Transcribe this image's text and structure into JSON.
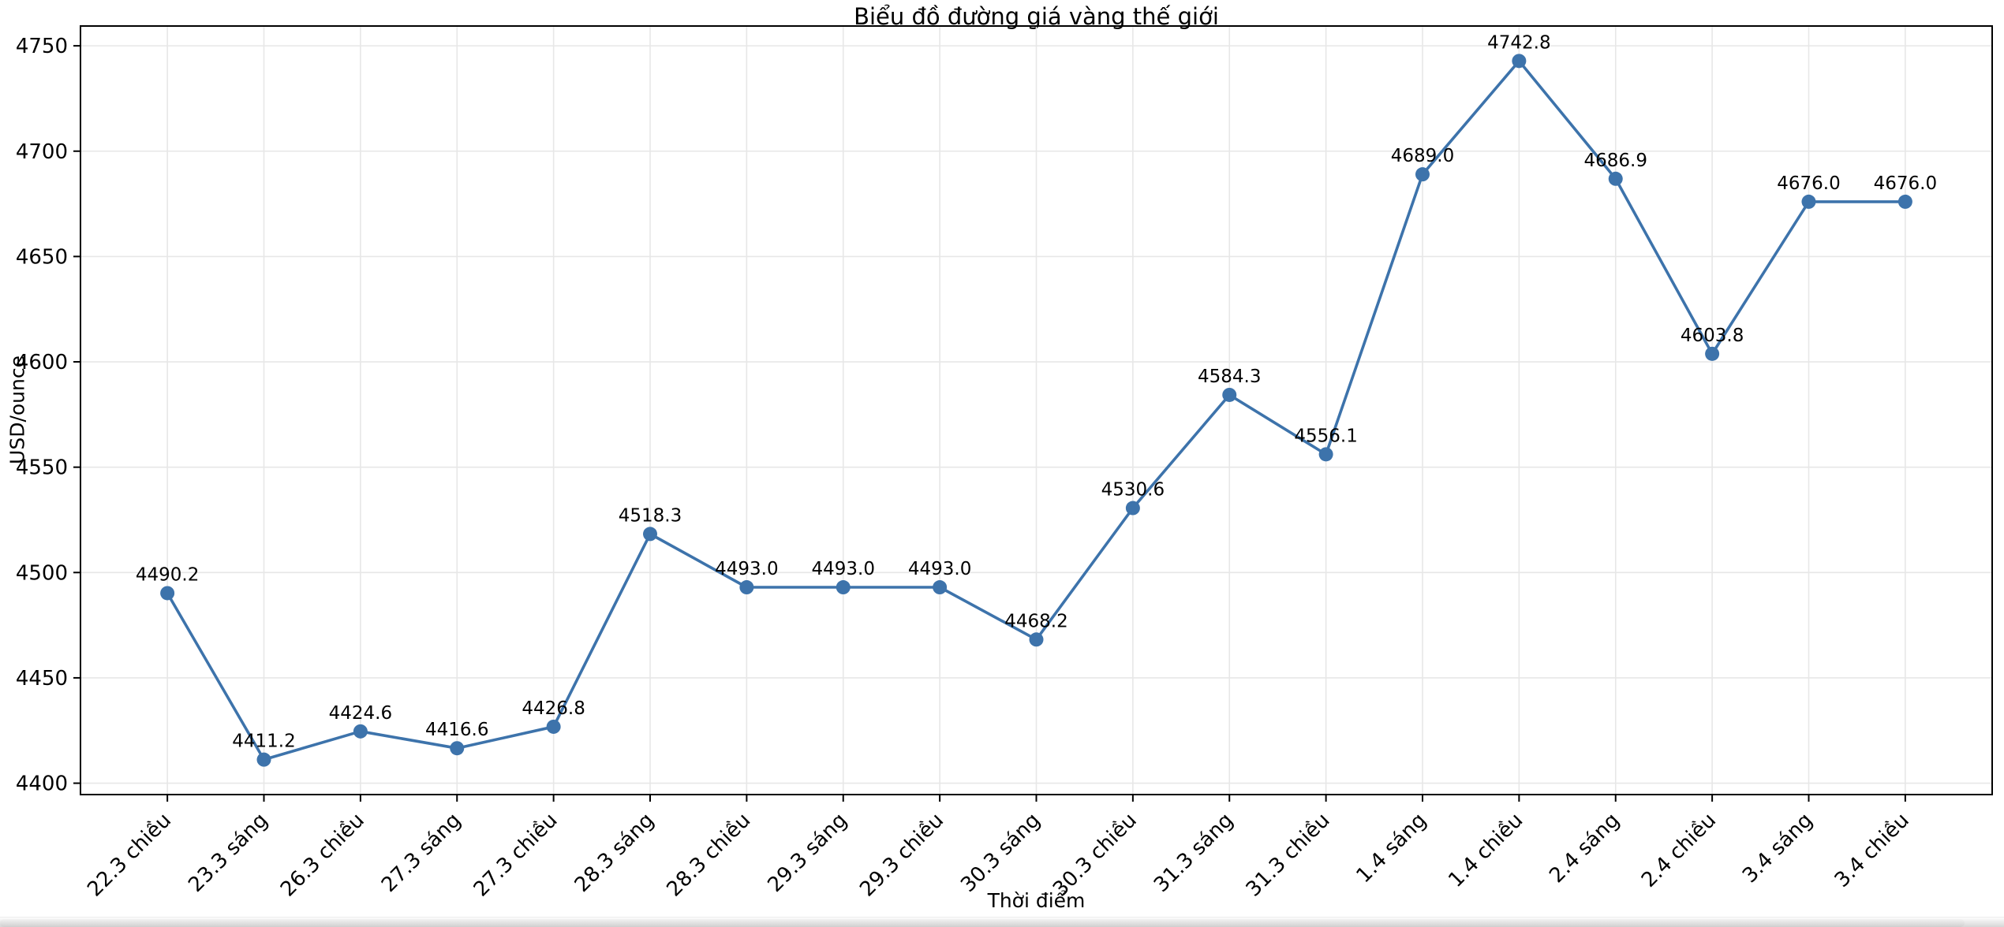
{
  "colors": {
    "line": "#3d73ab",
    "marker": "#3d73ab",
    "grid": "#e7e7e7",
    "spine": "#000000",
    "text": "#000000",
    "background": "#ffffff"
  },
  "chart_data": {
    "type": "line",
    "title": "Biểu đồ đường giá vàng thế giới",
    "xlabel": "Thời điểm",
    "ylabel": "USD/ounce",
    "categories": [
      "22.3 chiều",
      "23.3 sáng",
      "26.3 chiều",
      "27.3 sáng",
      "27.3 chiều",
      "28.3 sáng",
      "28.3 chiều",
      "29.3 sáng",
      "29.3 chiều",
      "30.3 sáng",
      "30.3 chiều",
      "31.3 sáng",
      "31.3 chiều",
      "1.4 sáng",
      "1.4 chiều",
      "2.4 sáng",
      "2.4 chiều",
      "3.4 sáng",
      "3.4 chiều"
    ],
    "values": [
      4490.2,
      4411.2,
      4424.6,
      4416.6,
      4426.8,
      4518.3,
      4493.0,
      4493.0,
      4493.0,
      4468.2,
      4530.6,
      4584.3,
      4556.1,
      4689.0,
      4742.8,
      4686.9,
      4603.8,
      4676.0,
      4676.0
    ],
    "point_labels": [
      "4490.2",
      "4411.2",
      "4424.6",
      "4416.6",
      "4426.8",
      "4518.3",
      "4493.0",
      "4493.0",
      "4493.0",
      "4468.2",
      "4530.6",
      "4584.3",
      "4556.1",
      "4689.0",
      "4742.8",
      "4686.9",
      "4603.8",
      "4676.0",
      "4676.0"
    ],
    "yticks": [
      4400,
      4450,
      4500,
      4550,
      4600,
      4650,
      4700,
      4750
    ],
    "ylim": [
      4394.6,
      4759.4
    ],
    "grid": true,
    "legend_position": "none",
    "x_tick_rotation_deg": 45
  }
}
